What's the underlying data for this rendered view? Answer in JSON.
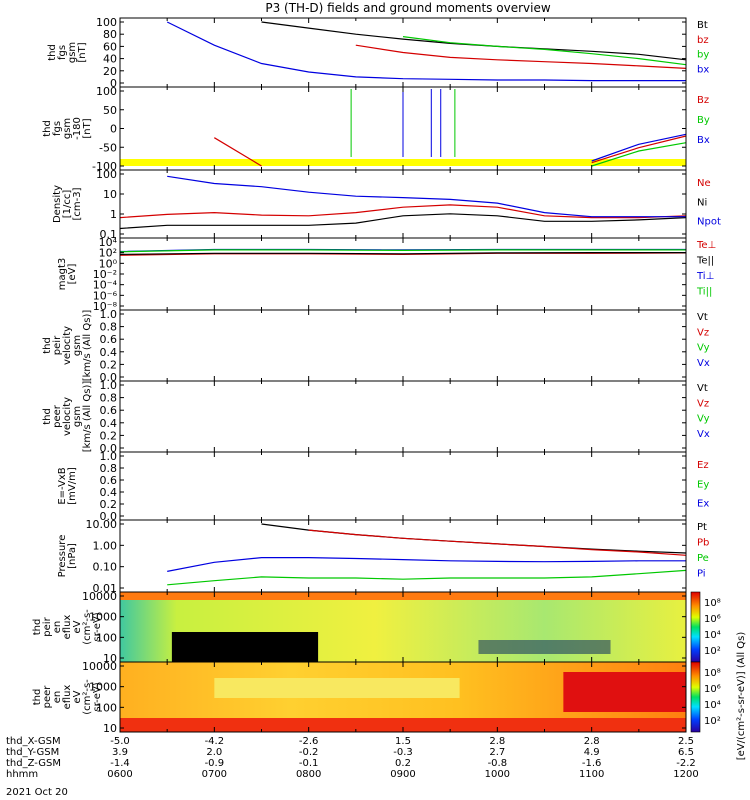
{
  "title": "P3 (TH-D) fields and ground moments overview",
  "colors": {
    "black": "#000000",
    "red": "#d40000",
    "green": "#00c800",
    "blue": "#0000e0",
    "yellow": "#ffff00"
  },
  "time_axis": {
    "ticks": [
      "0600",
      "0700",
      "0800",
      "0900",
      "1000",
      "1100",
      "1200"
    ],
    "date_label": "2021 Oct 20",
    "rows": [
      {
        "label": "thd_X-GSM",
        "values": [
          "-5.0",
          "-4.2",
          "-2.6",
          "1.5",
          "2.8",
          "2.8",
          "2.5"
        ]
      },
      {
        "label": "thd_Y-GSM",
        "values": [
          "3.9",
          "2.0",
          "-0.2",
          "-0.3",
          "2.7",
          "4.9",
          "6.5"
        ]
      },
      {
        "label": "thd_Z-GSM",
        "values": [
          "-1.4",
          "-0.9",
          "-0.1",
          "0.2",
          "-0.8",
          "-1.6",
          "-2.2"
        ]
      },
      {
        "label": "hhmm",
        "values": [
          "",
          "",
          "",
          "",
          "",
          "",
          ""
        ]
      }
    ]
  },
  "panels": [
    {
      "id": "fgs",
      "ylabel": [
        "thd",
        "fgs",
        "gsm",
        "[nT]"
      ],
      "ticks": [
        "100",
        "80",
        "60",
        "40",
        "20",
        "0"
      ],
      "legend": [
        {
          "text": "Bt",
          "color": "black"
        },
        {
          "text": "bz",
          "color": "red"
        },
        {
          "text": "by",
          "color": "green"
        },
        {
          "text": "bx",
          "color": "blue"
        }
      ]
    },
    {
      "id": "fgs-clip",
      "ylabel": [
        "thd",
        "fgs",
        "gsm",
        "-180",
        "[nT]"
      ],
      "ticks": [
        "100",
        "50",
        "0",
        "-50",
        "-100"
      ],
      "legend": [
        {
          "text": "Bz",
          "color": "red"
        },
        {
          "text": "By",
          "color": "green"
        },
        {
          "text": "Bx",
          "color": "blue"
        }
      ]
    },
    {
      "id": "density",
      "ylabel": [
        "Density",
        "[1/cc]",
        "[cm-3]"
      ],
      "ticks": [
        "100",
        "10",
        "1",
        "0.1"
      ],
      "legend": [
        {
          "text": "Ne",
          "color": "red"
        },
        {
          "text": "Ni",
          "color": "black"
        },
        {
          "text": "Npot",
          "color": "blue"
        }
      ]
    },
    {
      "id": "temp",
      "ylabel": [
        "magt3",
        "[eV]"
      ],
      "ticks": [
        "10⁴",
        "10²",
        "10⁰",
        "10⁻²",
        "10⁻⁴",
        "10⁻⁶",
        "10⁻⁸"
      ],
      "legend": [
        {
          "text": "Te⊥",
          "color": "red"
        },
        {
          "text": "Te||",
          "color": "black"
        },
        {
          "text": "Ti⊥",
          "color": "blue"
        },
        {
          "text": "Ti||",
          "color": "green"
        }
      ]
    },
    {
      "id": "vi",
      "ylabel": [
        "thd",
        "peir",
        "velocity",
        "gsm",
        "[km/s (All Qs)]"
      ],
      "ticks": [
        "1.0",
        "0.8",
        "0.6",
        "0.4",
        "0.2",
        "0.0"
      ],
      "legend": [
        {
          "text": "Vt",
          "color": "black"
        },
        {
          "text": "Vz",
          "color": "red"
        },
        {
          "text": "Vy",
          "color": "green"
        },
        {
          "text": "Vx",
          "color": "blue"
        }
      ]
    },
    {
      "id": "ve",
      "ylabel": [
        "thd",
        "peer",
        "velocity",
        "gsm",
        "[km/s (All Qs)]"
      ],
      "ticks": [
        "1.0",
        "0.8",
        "0.6",
        "0.4",
        "0.2",
        "0.0"
      ],
      "legend": [
        {
          "text": "Vt",
          "color": "black"
        },
        {
          "text": "Vz",
          "color": "red"
        },
        {
          "text": "Vy",
          "color": "green"
        },
        {
          "text": "Vx",
          "color": "blue"
        }
      ]
    },
    {
      "id": "efield",
      "ylabel": [
        "E=-VxB",
        "[mV/m]"
      ],
      "ticks": [
        "1.0",
        "0.8",
        "0.6",
        "0.4",
        "0.2",
        "0.0"
      ],
      "legend": [
        {
          "text": "Ez",
          "color": "red"
        },
        {
          "text": "Ey",
          "color": "green"
        },
        {
          "text": "Ex",
          "color": "blue"
        }
      ]
    },
    {
      "id": "pressure",
      "ylabel": [
        "Pressure",
        "[nPa]"
      ],
      "ticks": [
        "10.00",
        "1.00",
        "0.10",
        "0.01"
      ],
      "legend": [
        {
          "text": "Pt",
          "color": "black"
        },
        {
          "text": "Pb",
          "color": "red"
        },
        {
          "text": "Pe",
          "color": "green"
        },
        {
          "text": "Pi",
          "color": "blue"
        }
      ]
    },
    {
      "id": "ion-spec",
      "ylabel": [
        "thd",
        "peir",
        "en",
        "eflux",
        "eV",
        "(cm²-s-",
        "sr-eV)"
      ],
      "ticks": [
        "10000",
        "1000",
        "100",
        "10"
      ],
      "colorbar_ticks": [
        "10⁸",
        "10⁶",
        "10⁴",
        "10²"
      ]
    },
    {
      "id": "ele-spec",
      "ylabel": [
        "thd",
        "peer",
        "en",
        "eflux",
        "eV",
        "(cm²-s-",
        "sr-eV)"
      ],
      "ticks": [
        "10000",
        "1000",
        "100",
        "10"
      ],
      "colorbar_ticks": [
        "10⁸",
        "10⁶",
        "10⁴",
        "10²"
      ]
    }
  ],
  "colorbar_label": "[eV/(cm²-s-sr-eV)] (All Qs)",
  "chart_data": [
    {
      "type": "line",
      "panel": "fgs",
      "xlabel": "hhmm",
      "ylabel": "thd fgs gsm [nT]",
      "ylim": [
        0,
        100
      ],
      "x": [
        6.0,
        6.5,
        7.0,
        7.5,
        8.0,
        8.5,
        9.0,
        9.5,
        10.0,
        10.5,
        11.0,
        11.5,
        12.0
      ],
      "series": [
        {
          "name": "Bt",
          "color": "black",
          "values": [
            null,
            null,
            null,
            100,
            90,
            80,
            72,
            65,
            60,
            56,
            52,
            47,
            38
          ]
        },
        {
          "name": "bz",
          "color": "red",
          "values": [
            null,
            null,
            null,
            null,
            null,
            62,
            50,
            42,
            38,
            35,
            32,
            28,
            24
          ]
        },
        {
          "name": "by",
          "color": "green",
          "values": [
            null,
            null,
            null,
            null,
            null,
            null,
            76,
            66,
            60,
            55,
            48,
            40,
            30
          ]
        },
        {
          "name": "bx",
          "color": "blue",
          "values": [
            null,
            100,
            62,
            32,
            18,
            10,
            7,
            6,
            5,
            5,
            4,
            4,
            4
          ]
        }
      ]
    },
    {
      "type": "line",
      "panel": "fgs-clip",
      "xlabel": "hhmm",
      "ylabel": "thd fgs gsm -180 [nT]",
      "ylim": [
        -125,
        100
      ],
      "x": [
        6.0,
        6.5,
        7.0,
        7.5,
        8.0,
        8.5,
        9.0,
        9.5,
        10.0,
        10.5,
        11.0,
        11.5,
        12.0
      ],
      "series": [
        {
          "name": "Bz",
          "color": "red",
          "values": [
            null,
            null,
            -40,
            -125,
            null,
            null,
            null,
            null,
            null,
            null,
            -115,
            -70,
            -35
          ]
        },
        {
          "name": "By",
          "color": "green",
          "values": [
            null,
            null,
            null,
            null,
            null,
            null,
            null,
            null,
            null,
            null,
            -125,
            -80,
            -55
          ]
        },
        {
          "name": "Bx",
          "color": "blue",
          "values": [
            null,
            null,
            null,
            -125,
            null,
            null,
            null,
            null,
            null,
            null,
            -110,
            -60,
            -30
          ]
        }
      ]
    },
    {
      "type": "line",
      "panel": "density",
      "xlabel": "hhmm",
      "ylabel": "Density [1/cc] [cm-3]",
      "yscale": "log",
      "ylim": [
        0.1,
        200
      ],
      "x": [
        6.0,
        6.5,
        7.0,
        7.5,
        8.0,
        8.5,
        9.0,
        9.5,
        10.0,
        10.5,
        11.0,
        11.5,
        12.0
      ],
      "series": [
        {
          "name": "Ne",
          "color": "red",
          "values": [
            0.8,
            1.2,
            1.5,
            1.1,
            1.0,
            1.5,
            3.0,
            4.0,
            3.0,
            1.0,
            0.8,
            0.8,
            1.0
          ]
        },
        {
          "name": "Ni",
          "color": "black",
          "values": [
            0.2,
            0.3,
            0.3,
            0.3,
            0.3,
            0.4,
            1.0,
            1.3,
            1.0,
            0.5,
            0.5,
            0.6,
            0.8
          ]
        },
        {
          "name": "Npot",
          "color": "blue",
          "values": [
            null,
            150,
            60,
            40,
            20,
            12,
            10,
            8,
            5,
            1.5,
            0.9,
            0.9,
            0.9
          ]
        }
      ]
    },
    {
      "type": "line",
      "panel": "temp",
      "xlabel": "hhmm",
      "ylabel": "magt3 [eV]",
      "yscale": "log",
      "ylim": [
        1e-08,
        100000.0
      ],
      "x": [
        6.0,
        7.0,
        8.0,
        9.0,
        10.0,
        11.0,
        12.0
      ],
      "series": [
        {
          "name": "Te⊥",
          "color": "red",
          "values": [
            200,
            400,
            400,
            300,
            500,
            500,
            600
          ]
        },
        {
          "name": "Te||",
          "color": "black",
          "values": [
            300,
            500,
            500,
            400,
            600,
            700,
            700
          ]
        },
        {
          "name": "Ti⊥",
          "color": "blue",
          "values": [
            1200,
            3000,
            3000,
            2500,
            3000,
            3000,
            3000
          ]
        },
        {
          "name": "Ti||",
          "color": "green",
          "values": [
            1000,
            2500,
            2500,
            2000,
            2500,
            2500,
            2500
          ]
        }
      ]
    },
    {
      "type": "area",
      "panel": "pressure",
      "xlabel": "hhmm",
      "ylabel": "Pressure [nPa]",
      "yscale": "log",
      "ylim": [
        0.01,
        30
      ],
      "x": [
        6.0,
        6.5,
        7.0,
        7.5,
        8.0,
        8.5,
        9.0,
        9.5,
        10.0,
        10.5,
        11.0,
        11.5,
        12.0
      ],
      "series": [
        {
          "name": "Pt",
          "color": "black",
          "values": [
            null,
            null,
            null,
            30,
            14,
            8,
            5,
            3.5,
            2.5,
            1.8,
            1.3,
            1.0,
            0.8
          ]
        },
        {
          "name": "Pb",
          "color": "red",
          "values": [
            null,
            null,
            null,
            null,
            14,
            8,
            5,
            3.5,
            2.5,
            1.8,
            1.2,
            0.9,
            0.6
          ]
        },
        {
          "name": "Pe",
          "color": "green",
          "values": [
            null,
            0.015,
            0.025,
            0.04,
            0.035,
            0.035,
            0.03,
            0.035,
            0.035,
            0.035,
            0.04,
            0.06,
            0.09
          ]
        },
        {
          "name": "Pi",
          "color": "blue",
          "values": [
            null,
            0.08,
            0.25,
            0.45,
            0.45,
            0.4,
            0.35,
            0.3,
            0.28,
            0.27,
            0.28,
            0.3,
            0.3
          ]
        }
      ]
    }
  ]
}
